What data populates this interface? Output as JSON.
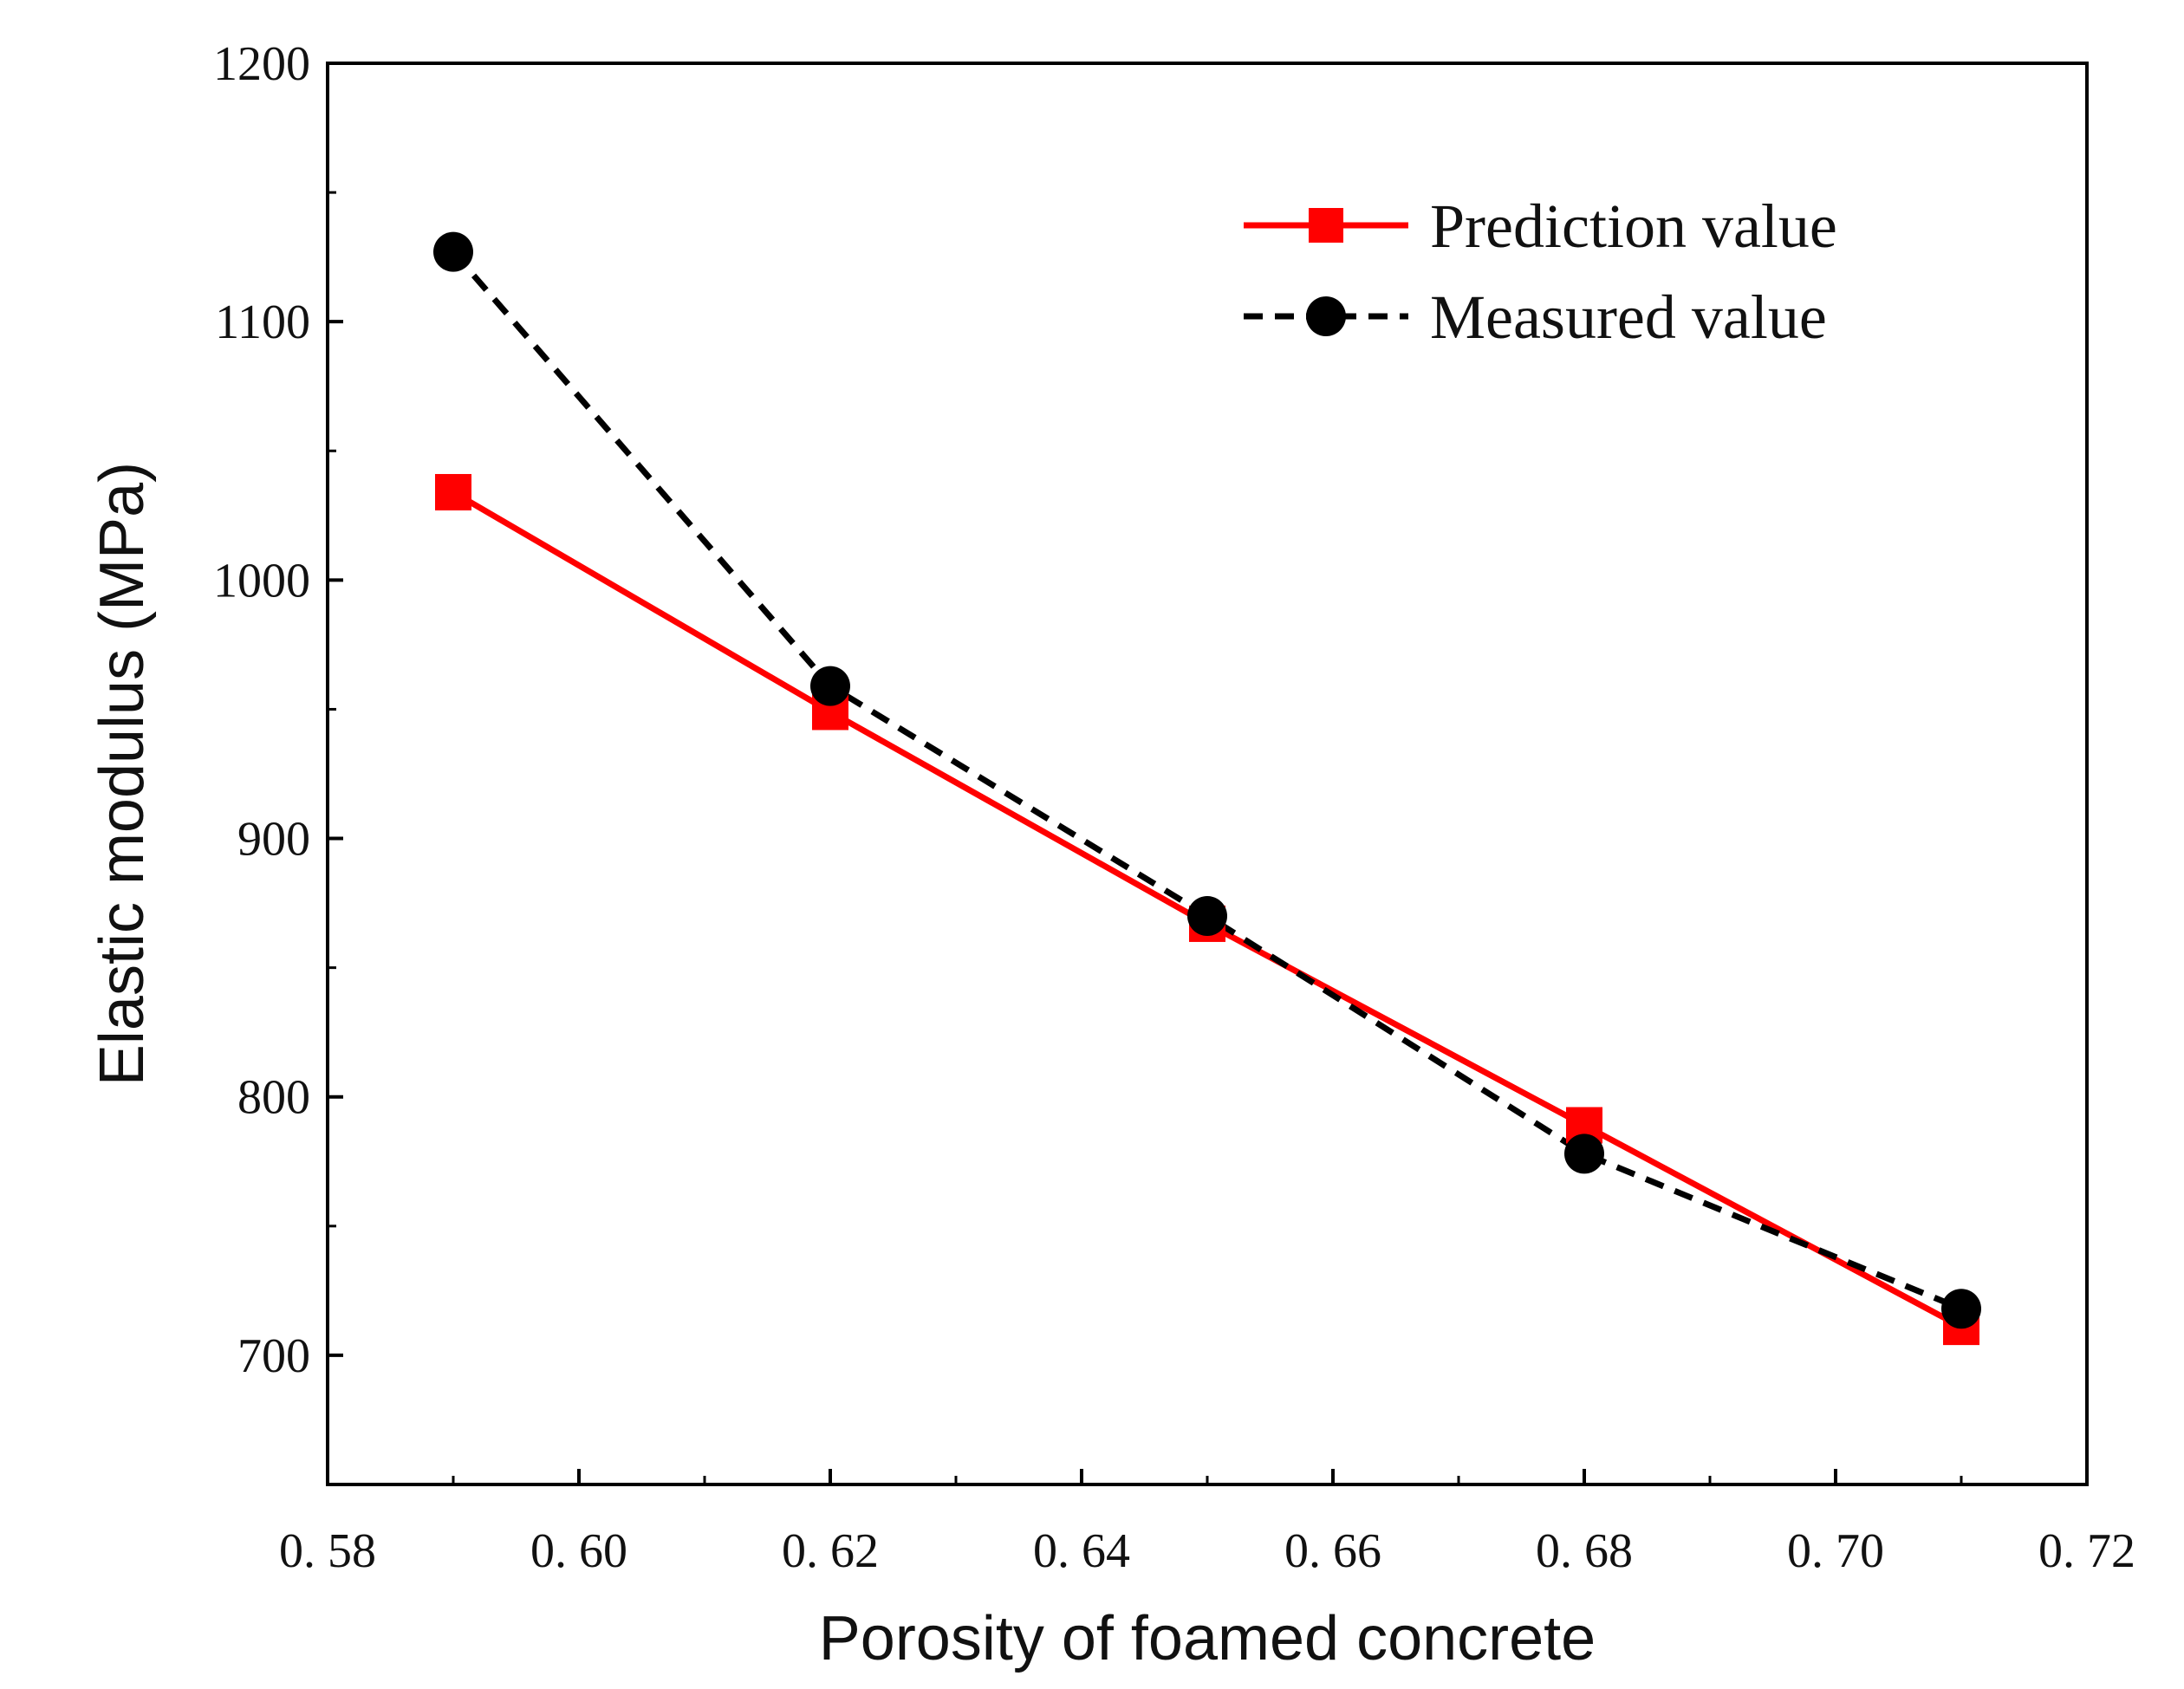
{
  "chart_data": {
    "type": "line",
    "title": "",
    "xlabel": "Porosity of foamed concrete",
    "ylabel": "Elastic modulus (MPa)",
    "xlim": [
      0.58,
      0.72
    ],
    "ylim": [
      650,
      1200
    ],
    "x_ticks": [
      0.58,
      0.6,
      0.62,
      0.64,
      0.66,
      0.68,
      0.7,
      0.72
    ],
    "x_tick_labels": [
      "0. 58",
      "0. 60",
      "0. 62",
      "0. 64",
      "0. 66",
      "0. 68",
      "0. 70",
      "0. 72"
    ],
    "y_ticks": [
      700,
      800,
      900,
      1000,
      1100,
      1200
    ],
    "y_tick_labels": [
      "700",
      "800",
      "900",
      "1000",
      "1100",
      "1200"
    ],
    "grid": false,
    "legend_position": "top-right",
    "series": [
      {
        "name": "Prediction value",
        "color": "#ff0000",
        "line_style": "solid",
        "marker": "square",
        "x": [
          0.59,
          0.62,
          0.65,
          0.68,
          0.71
        ],
        "y": [
          1034,
          949,
          867,
          789,
          711
        ]
      },
      {
        "name": "Measured value",
        "color": "#000000",
        "line_style": "dashed",
        "marker": "circle",
        "x": [
          0.59,
          0.62,
          0.65,
          0.68,
          0.71
        ],
        "y": [
          1127,
          959,
          870,
          778,
          718
        ]
      }
    ]
  }
}
